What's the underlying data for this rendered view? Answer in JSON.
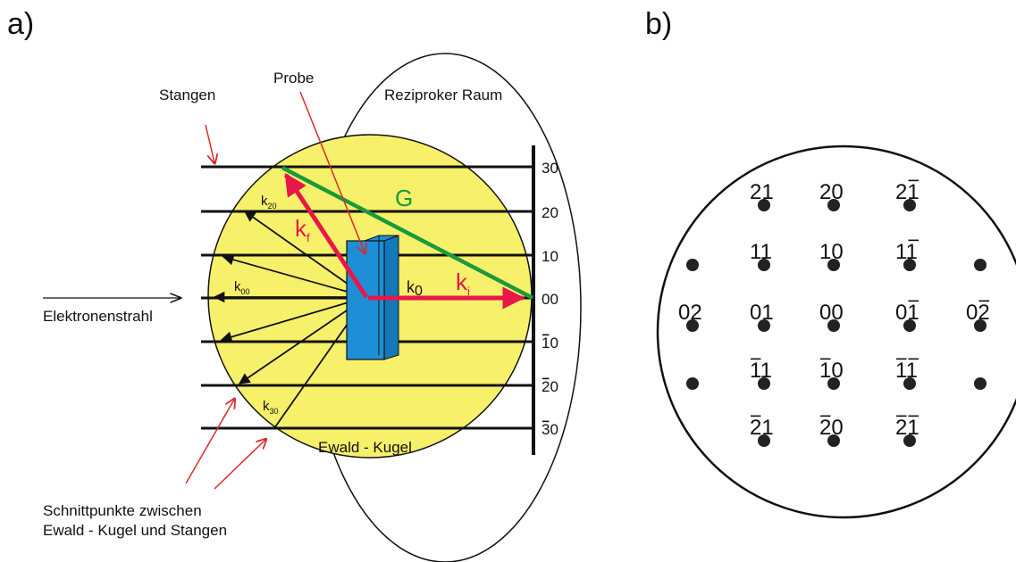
{
  "panels": {
    "a": "a)",
    "b": "b)"
  },
  "labels": {
    "stangen": "Stangen",
    "probe": "Probe",
    "reziproker_raum": "Reziproker Raum",
    "elektronenstrahl": "Elektronenstrahl",
    "ewald_kugel": "Ewald - Kugel",
    "schnitt_line1": "Schnittpunkte zwischen",
    "schnitt_line2": "Ewald - Kugel und Stangen",
    "G": "G",
    "k_f": "k",
    "k_f_sub": "f",
    "k_i": "k",
    "k_i_sub": "i",
    "k0": "k",
    "k0_sub": "0",
    "k20": "k",
    "k20_sub": "20",
    "k00": "k",
    "k00_sub": "00",
    "k30": "k",
    "k30_sub": "30"
  },
  "rods": [
    {
      "digits": "30",
      "bar": []
    },
    {
      "digits": "20",
      "bar": []
    },
    {
      "digits": "10",
      "bar": []
    },
    {
      "digits": "00",
      "bar": []
    },
    {
      "digits": "10",
      "bar": [
        0
      ]
    },
    {
      "digits": "20",
      "bar": [
        0
      ]
    },
    {
      "digits": "30",
      "bar": [
        0
      ]
    }
  ],
  "spots": [
    {
      "digits": "21",
      "bar": []
    },
    {
      "digits": "20",
      "bar": []
    },
    {
      "digits": "21",
      "bar": [
        1
      ]
    },
    {
      "digits": "11",
      "bar": []
    },
    {
      "digits": "10",
      "bar": []
    },
    {
      "digits": "11",
      "bar": [
        1
      ]
    },
    {
      "digits": "02",
      "bar": []
    },
    {
      "digits": "01",
      "bar": []
    },
    {
      "digits": "00",
      "bar": []
    },
    {
      "digits": "01",
      "bar": [
        1
      ]
    },
    {
      "digits": "02",
      "bar": [
        1
      ]
    },
    {
      "digits": "11",
      "bar": [
        0
      ]
    },
    {
      "digits": "10",
      "bar": [
        0
      ]
    },
    {
      "digits": "11",
      "bar": [
        0,
        1
      ]
    },
    {
      "digits": "21",
      "bar": [
        0
      ]
    },
    {
      "digits": "20",
      "bar": [
        0
      ]
    },
    {
      "digits": "21",
      "bar": [
        0,
        1
      ]
    }
  ],
  "colors": {
    "sphere": "#f7f06a",
    "sample": "#1e8fd6",
    "vector_red": "#e8174a",
    "annotation_red": "#d92b2b",
    "G": "#1a9a3a",
    "line": "#111111"
  }
}
